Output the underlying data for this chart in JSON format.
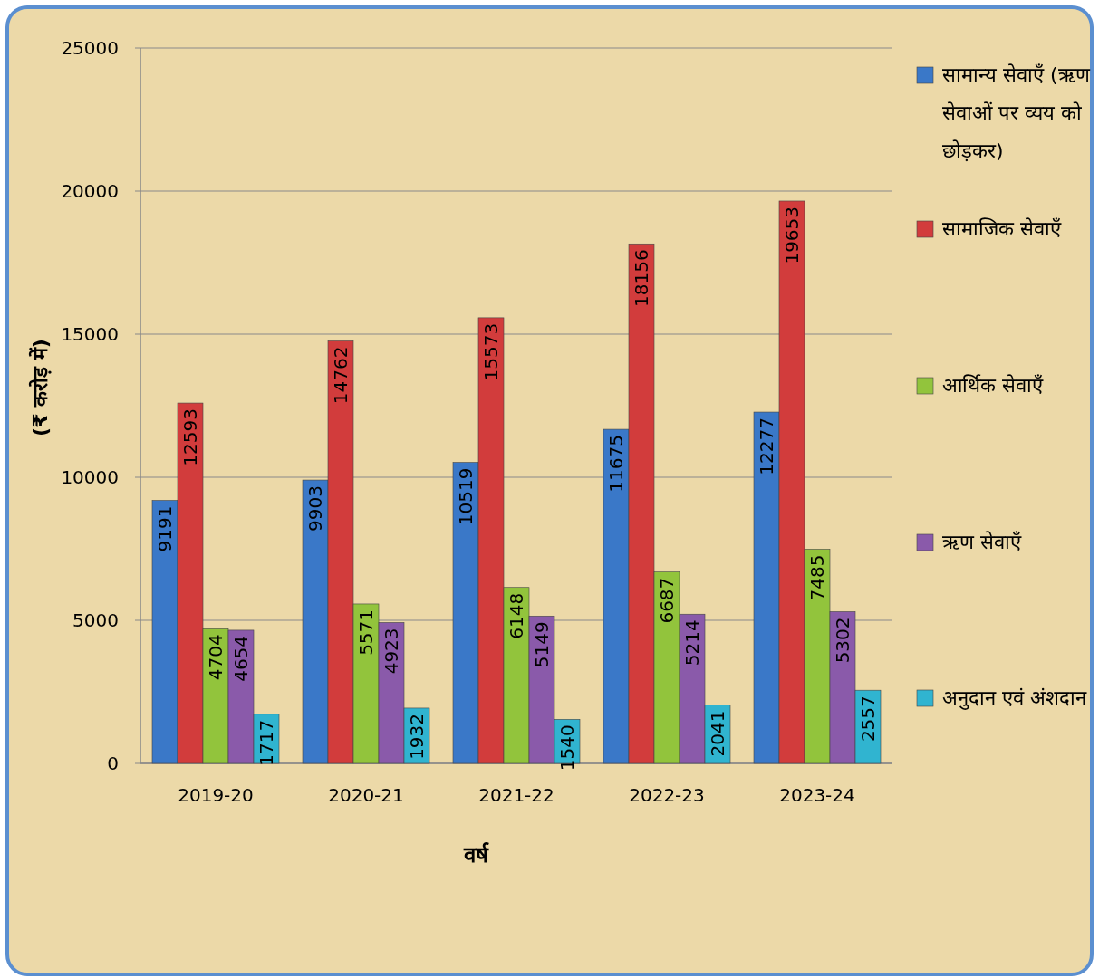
{
  "chart_data": {
    "type": "bar",
    "xlabel": "वर्ष",
    "ylabel": "(₹ करोड़ में)",
    "categories": [
      "2019-20",
      "2020-21",
      "2021-22",
      "2022-23",
      "2023-24"
    ],
    "series": [
      {
        "name": "सामान्य सेवाएँ (ऋण सेवाओं पर व्यय को छोड़कर)",
        "color": "#3a78c8",
        "values": [
          9191,
          9903,
          10519,
          11675,
          12277
        ]
      },
      {
        "name": "सामाजिक सेवाएँ",
        "color": "#d23c3c",
        "values": [
          12593,
          14762,
          15573,
          18156,
          19653
        ]
      },
      {
        "name": "आर्थिक सेवाएँ",
        "color": "#92c43c",
        "values": [
          4704,
          5571,
          6148,
          6687,
          7485
        ]
      },
      {
        "name": "ऋण सेवाएँ",
        "color": "#8a5aaa",
        "values": [
          4654,
          4923,
          5149,
          5214,
          5302
        ]
      },
      {
        "name": "अनुदान एवं अंशदान",
        "color": "#30b4d0",
        "values": [
          1717,
          1932,
          1540,
          2041,
          2557
        ]
      }
    ],
    "ylim": [
      0,
      25000
    ],
    "yticks": [
      0,
      5000,
      10000,
      15000,
      20000,
      25000
    ],
    "grid": "y",
    "legend": "right",
    "data_labels": true
  }
}
